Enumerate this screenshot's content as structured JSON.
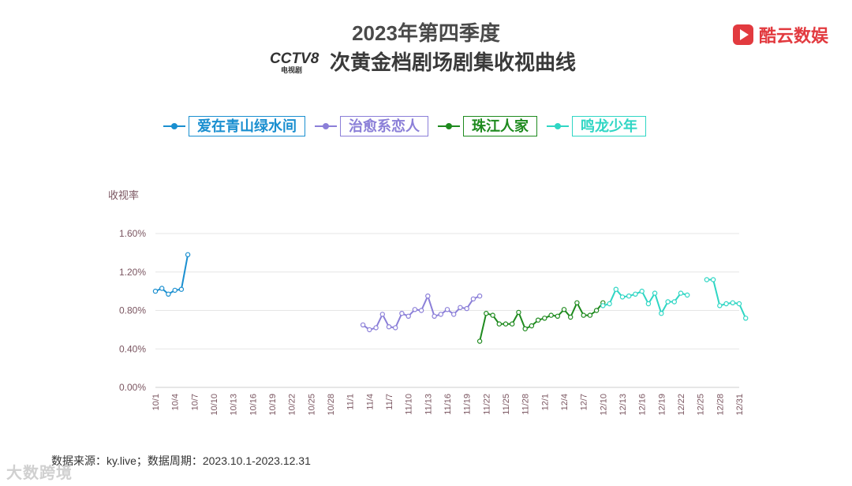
{
  "header": {
    "title_line1": "2023年第四季度",
    "title_line2": "次黄金档剧场剧集收视曲线",
    "channel_logo_text": "CCTV8",
    "channel_logo_sub": "电视剧",
    "brand_name": "酷云数娱"
  },
  "footer": {
    "source": "数据来源：ky.live；数据周期：2023.10.1-2023.12.31",
    "watermark": "大数跨境"
  },
  "colors": {
    "series1": "#1a8fd0",
    "series2": "#8b7fd8",
    "series3": "#1e8a1e",
    "series4": "#2fd6c4",
    "axis_label": "#7a5560"
  },
  "chart_data": {
    "type": "line",
    "ylabel": "收视率",
    "ylim": [
      0,
      1.6
    ],
    "yticks": [
      "0.00%",
      "0.40%",
      "0.80%",
      "1.20%",
      "1.60%"
    ],
    "x_start": "10/1",
    "x_end": "12/31",
    "xtick_labels": [
      "10/1",
      "10/4",
      "10/7",
      "10/10",
      "10/13",
      "10/16",
      "10/19",
      "10/22",
      "10/25",
      "10/28",
      "11/1",
      "11/4",
      "11/7",
      "11/10",
      "11/13",
      "11/16",
      "11/19",
      "11/22",
      "11/25",
      "11/28",
      "12/1",
      "12/4",
      "12/7",
      "12/10",
      "12/13",
      "12/16",
      "12/19",
      "12/22",
      "12/25",
      "12/28",
      "12/31"
    ],
    "series": [
      {
        "name": "爱在青山绿水间",
        "start_day": 0,
        "values": [
          1.0,
          1.03,
          0.97,
          1.01,
          1.02,
          1.38
        ]
      },
      {
        "name": "治愈系恋人",
        "start_day": 32,
        "values": [
          0.65,
          0.6,
          0.62,
          0.76,
          0.63,
          0.62,
          0.77,
          0.74,
          0.81,
          0.8,
          0.95,
          0.74,
          0.76,
          0.81,
          0.76,
          0.83,
          0.82,
          0.92,
          0.95
        ]
      },
      {
        "name": "珠江人家",
        "start_day": 50,
        "values": [
          0.48,
          0.77,
          0.75,
          0.66,
          0.66,
          0.66,
          0.78,
          0.61,
          0.64,
          0.7,
          0.72,
          0.75,
          0.74,
          0.81,
          0.73,
          0.88,
          0.75,
          0.75,
          0.8,
          0.88
        ]
      },
      {
        "name": "鸣龙少年",
        "start_day": 69,
        "values": [
          0.85,
          0.87,
          1.02,
          0.94,
          0.95,
          0.97,
          1.0,
          0.87,
          0.98,
          0.77,
          0.89,
          0.89,
          0.98,
          0.96,
          null,
          null,
          1.12,
          1.12,
          0.85,
          0.87,
          0.88,
          0.87,
          0.72
        ]
      }
    ]
  }
}
